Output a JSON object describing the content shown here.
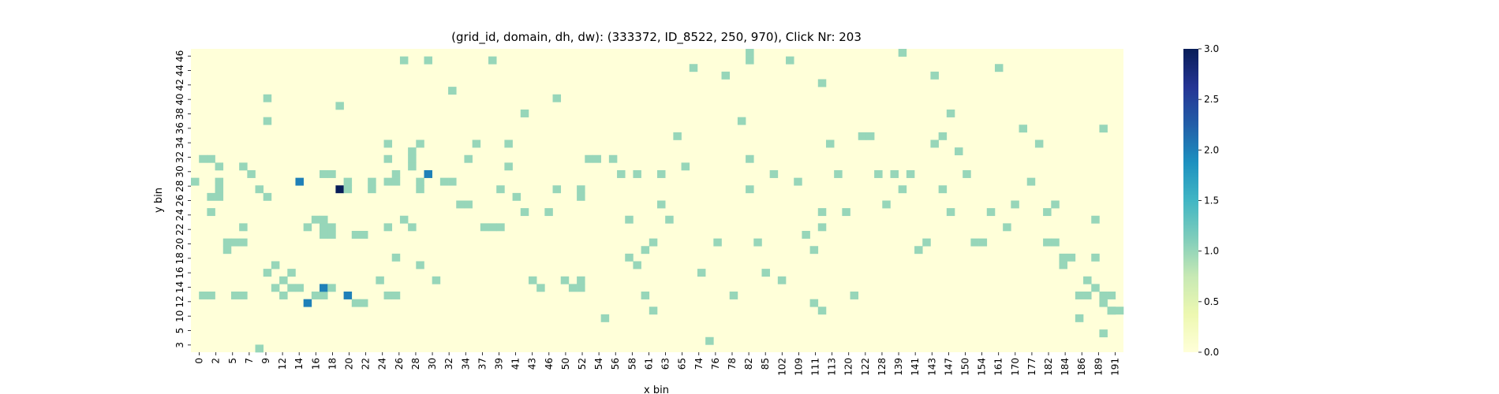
{
  "chart_data": {
    "type": "heatmap",
    "title": "(grid_id, domain, dh, dw): (333372, ID_8522, 250, 970), Click Nr: 203",
    "xlabel": "x bin",
    "ylabel": "y bin",
    "x_tick_labels": [
      "0",
      "2",
      "5",
      "7",
      "9",
      "12",
      "14",
      "16",
      "18",
      "20",
      "22",
      "24",
      "26",
      "28",
      "30",
      "32",
      "34",
      "37",
      "39",
      "41",
      "43",
      "46",
      "50",
      "52",
      "54",
      "56",
      "58",
      "61",
      "63",
      "65",
      "74",
      "76",
      "78",
      "82",
      "85",
      "102",
      "109",
      "111",
      "113",
      "120",
      "122",
      "128",
      "139",
      "141",
      "143",
      "147",
      "150",
      "154",
      "161",
      "170",
      "177",
      "182",
      "184",
      "186",
      "189",
      "191"
    ],
    "y_tick_labels": [
      "46",
      "44",
      "42",
      "40",
      "38",
      "36",
      "34",
      "32",
      "30",
      "28",
      "26",
      "24",
      "22",
      "20",
      "18",
      "16",
      "14",
      "12",
      "10",
      "5",
      "3"
    ],
    "colorbar": {
      "ticks": [
        "0.0",
        "0.5",
        "1.0",
        "1.5",
        "2.0",
        "2.5",
        "3.0"
      ],
      "vmin": 0,
      "vmax": 3,
      "colormap": "YlGnBu",
      "colors": [
        "#ffffd9",
        "#edf8b1",
        "#c7e9b4",
        "#7fcdbb",
        "#41b6c4",
        "#1d91c0",
        "#225ea8",
        "#253494",
        "#081d58"
      ]
    },
    "grid": {
      "n_columns": 116,
      "n_rows": 40,
      "cells": [
        {
          "col": 0,
          "row": 17,
          "value": 1
        },
        {
          "col": 1,
          "row": 14,
          "value": 1
        },
        {
          "col": 1,
          "row": 32,
          "value": 1
        },
        {
          "col": 2,
          "row": 14,
          "value": 1
        },
        {
          "col": 2,
          "row": 21,
          "value": 1
        },
        {
          "col": 2,
          "row": 19,
          "value": 1
        },
        {
          "col": 2,
          "row": 32,
          "value": 1
        },
        {
          "col": 3,
          "row": 17,
          "value": 1
        },
        {
          "col": 3,
          "row": 18,
          "value": 1
        },
        {
          "col": 3,
          "row": 15,
          "value": 1
        },
        {
          "col": 3,
          "row": 19,
          "value": 1
        },
        {
          "col": 4,
          "row": 25,
          "value": 1
        },
        {
          "col": 4,
          "row": 26,
          "value": 1
        },
        {
          "col": 5,
          "row": 25,
          "value": 1
        },
        {
          "col": 6,
          "row": 25,
          "value": 1
        },
        {
          "col": 5,
          "row": 32,
          "value": 1
        },
        {
          "col": 6,
          "row": 32,
          "value": 1
        },
        {
          "col": 6,
          "row": 23,
          "value": 1
        },
        {
          "col": 6,
          "row": 15,
          "value": 1
        },
        {
          "col": 7,
          "row": 16,
          "value": 1
        },
        {
          "col": 8,
          "row": 18,
          "value": 1
        },
        {
          "col": 8,
          "row": 39,
          "value": 1
        },
        {
          "col": 9,
          "row": 29,
          "value": 1
        },
        {
          "col": 9,
          "row": 19,
          "value": 1
        },
        {
          "col": 9,
          "row": 9,
          "value": 1
        },
        {
          "col": 9,
          "row": 6,
          "value": 1
        },
        {
          "col": 10,
          "row": 28,
          "value": 1
        },
        {
          "col": 10,
          "row": 31,
          "value": 1
        },
        {
          "col": 11,
          "row": 32,
          "value": 1
        },
        {
          "col": 11,
          "row": 30,
          "value": 1
        },
        {
          "col": 12,
          "row": 31,
          "value": 1
        },
        {
          "col": 12,
          "row": 29,
          "value": 1
        },
        {
          "col": 13,
          "row": 17,
          "value": 2
        },
        {
          "col": 13,
          "row": 31,
          "value": 1
        },
        {
          "col": 14,
          "row": 33,
          "value": 2
        },
        {
          "col": 14,
          "row": 23,
          "value": 1
        },
        {
          "col": 15,
          "row": 32,
          "value": 1
        },
        {
          "col": 15,
          "row": 22,
          "value": 1
        },
        {
          "col": 16,
          "row": 22,
          "value": 1
        },
        {
          "col": 16,
          "row": 32,
          "value": 1
        },
        {
          "col": 16,
          "row": 31,
          "value": 2
        },
        {
          "col": 16,
          "row": 16,
          "value": 1
        },
        {
          "col": 17,
          "row": 16,
          "value": 1
        },
        {
          "col": 16,
          "row": 23,
          "value": 1
        },
        {
          "col": 16,
          "row": 24,
          "value": 1
        },
        {
          "col": 17,
          "row": 24,
          "value": 1
        },
        {
          "col": 17,
          "row": 23,
          "value": 1
        },
        {
          "col": 17,
          "row": 31,
          "value": 1
        },
        {
          "col": 18,
          "row": 18,
          "value": 3
        },
        {
          "col": 18,
          "row": 7,
          "value": 1
        },
        {
          "col": 19,
          "row": 17,
          "value": 1
        },
        {
          "col": 19,
          "row": 18,
          "value": 1
        },
        {
          "col": 19,
          "row": 32,
          "value": 2
        },
        {
          "col": 20,
          "row": 24,
          "value": 1
        },
        {
          "col": 21,
          "row": 24,
          "value": 1
        },
        {
          "col": 20,
          "row": 33,
          "value": 1
        },
        {
          "col": 21,
          "row": 33,
          "value": 1
        },
        {
          "col": 22,
          "row": 17,
          "value": 1
        },
        {
          "col": 22,
          "row": 18,
          "value": 1
        },
        {
          "col": 23,
          "row": 30,
          "value": 1
        },
        {
          "col": 24,
          "row": 12,
          "value": 1
        },
        {
          "col": 24,
          "row": 14,
          "value": 1
        },
        {
          "col": 24,
          "row": 17,
          "value": 1
        },
        {
          "col": 25,
          "row": 17,
          "value": 1
        },
        {
          "col": 24,
          "row": 23,
          "value": 1
        },
        {
          "col": 24,
          "row": 32,
          "value": 1
        },
        {
          "col": 25,
          "row": 32,
          "value": 1
        },
        {
          "col": 25,
          "row": 16,
          "value": 1
        },
        {
          "col": 25,
          "row": 27,
          "value": 1
        },
        {
          "col": 26,
          "row": 22,
          "value": 1
        },
        {
          "col": 26,
          "row": 1,
          "value": 1
        },
        {
          "col": 27,
          "row": 13,
          "value": 1
        },
        {
          "col": 27,
          "row": 14,
          "value": 1
        },
        {
          "col": 27,
          "row": 15,
          "value": 1
        },
        {
          "col": 27,
          "row": 23,
          "value": 1
        },
        {
          "col": 28,
          "row": 12,
          "value": 1
        },
        {
          "col": 28,
          "row": 17,
          "value": 1
        },
        {
          "col": 28,
          "row": 18,
          "value": 1
        },
        {
          "col": 28,
          "row": 28,
          "value": 1
        },
        {
          "col": 29,
          "row": 16,
          "value": 2
        },
        {
          "col": 29,
          "row": 1,
          "value": 1
        },
        {
          "col": 30,
          "row": 30,
          "value": 1
        },
        {
          "col": 31,
          "row": 17,
          "value": 1
        },
        {
          "col": 32,
          "row": 17,
          "value": 1
        },
        {
          "col": 32,
          "row": 5,
          "value": 1
        },
        {
          "col": 33,
          "row": 20,
          "value": 1
        },
        {
          "col": 34,
          "row": 20,
          "value": 1
        },
        {
          "col": 34,
          "row": 14,
          "value": 1
        },
        {
          "col": 35,
          "row": 12,
          "value": 1
        },
        {
          "col": 36,
          "row": 23,
          "value": 1
        },
        {
          "col": 37,
          "row": 23,
          "value": 1
        },
        {
          "col": 38,
          "row": 23,
          "value": 1
        },
        {
          "col": 37,
          "row": 1,
          "value": 1
        },
        {
          "col": 38,
          "row": 18,
          "value": 1
        },
        {
          "col": 39,
          "row": 12,
          "value": 1
        },
        {
          "col": 39,
          "row": 15,
          "value": 1
        },
        {
          "col": 40,
          "row": 19,
          "value": 1
        },
        {
          "col": 41,
          "row": 8,
          "value": 1
        },
        {
          "col": 41,
          "row": 21,
          "value": 1
        },
        {
          "col": 42,
          "row": 30,
          "value": 1
        },
        {
          "col": 43,
          "row": 31,
          "value": 1
        },
        {
          "col": 44,
          "row": 21,
          "value": 1
        },
        {
          "col": 45,
          "row": 6,
          "value": 1
        },
        {
          "col": 45,
          "row": 18,
          "value": 1
        },
        {
          "col": 46,
          "row": 30,
          "value": 1
        },
        {
          "col": 47,
          "row": 31,
          "value": 1
        },
        {
          "col": 48,
          "row": 18,
          "value": 1
        },
        {
          "col": 48,
          "row": 19,
          "value": 1
        },
        {
          "col": 48,
          "row": 30,
          "value": 1
        },
        {
          "col": 48,
          "row": 31,
          "value": 1
        },
        {
          "col": 49,
          "row": 14,
          "value": 1
        },
        {
          "col": 50,
          "row": 14,
          "value": 1
        },
        {
          "col": 51,
          "row": 35,
          "value": 1
        },
        {
          "col": 52,
          "row": 14,
          "value": 1
        },
        {
          "col": 53,
          "row": 16,
          "value": 1
        },
        {
          "col": 54,
          "row": 22,
          "value": 1
        },
        {
          "col": 54,
          "row": 27,
          "value": 1
        },
        {
          "col": 55,
          "row": 16,
          "value": 1
        },
        {
          "col": 55,
          "row": 28,
          "value": 1
        },
        {
          "col": 56,
          "row": 32,
          "value": 1
        },
        {
          "col": 56,
          "row": 26,
          "value": 1
        },
        {
          "col": 57,
          "row": 34,
          "value": 1
        },
        {
          "col": 57,
          "row": 25,
          "value": 1
        },
        {
          "col": 58,
          "row": 16,
          "value": 1
        },
        {
          "col": 58,
          "row": 20,
          "value": 1
        },
        {
          "col": 59,
          "row": 22,
          "value": 1
        },
        {
          "col": 60,
          "row": 11,
          "value": 1
        },
        {
          "col": 61,
          "row": 15,
          "value": 1
        },
        {
          "col": 62,
          "row": 2,
          "value": 1
        },
        {
          "col": 63,
          "row": 29,
          "value": 1
        },
        {
          "col": 64,
          "row": 38,
          "value": 1
        },
        {
          "col": 65,
          "row": 25,
          "value": 1
        },
        {
          "col": 66,
          "row": 3,
          "value": 1
        },
        {
          "col": 67,
          "row": 32,
          "value": 1
        },
        {
          "col": 68,
          "row": 9,
          "value": 1
        },
        {
          "col": 69,
          "row": 1,
          "value": 1
        },
        {
          "col": 69,
          "row": 14,
          "value": 1
        },
        {
          "col": 69,
          "row": 18,
          "value": 1
        },
        {
          "col": 69,
          "row": 0,
          "value": 1
        },
        {
          "col": 70,
          "row": 25,
          "value": 1
        },
        {
          "col": 71,
          "row": 29,
          "value": 1
        },
        {
          "col": 72,
          "row": 16,
          "value": 1
        },
        {
          "col": 73,
          "row": 30,
          "value": 1
        },
        {
          "col": 74,
          "row": 1,
          "value": 1
        },
        {
          "col": 75,
          "row": 17,
          "value": 1
        },
        {
          "col": 76,
          "row": 24,
          "value": 1
        },
        {
          "col": 77,
          "row": 26,
          "value": 1
        },
        {
          "col": 77,
          "row": 33,
          "value": 1
        },
        {
          "col": 78,
          "row": 4,
          "value": 1
        },
        {
          "col": 78,
          "row": 21,
          "value": 1
        },
        {
          "col": 78,
          "row": 23,
          "value": 1
        },
        {
          "col": 78,
          "row": 34,
          "value": 1
        },
        {
          "col": 79,
          "row": 12,
          "value": 1
        },
        {
          "col": 80,
          "row": 16,
          "value": 1
        },
        {
          "col": 81,
          "row": 21,
          "value": 1
        },
        {
          "col": 82,
          "row": 32,
          "value": 1
        },
        {
          "col": 83,
          "row": 11,
          "value": 1
        },
        {
          "col": 84,
          "row": 11,
          "value": 1
        },
        {
          "col": 85,
          "row": 16,
          "value": 1
        },
        {
          "col": 86,
          "row": 20,
          "value": 1
        },
        {
          "col": 87,
          "row": 16,
          "value": 1
        },
        {
          "col": 88,
          "row": 18,
          "value": 1
        },
        {
          "col": 88,
          "row": 0,
          "value": 1
        },
        {
          "col": 89,
          "row": 16,
          "value": 1
        },
        {
          "col": 90,
          "row": 26,
          "value": 1
        },
        {
          "col": 91,
          "row": 25,
          "value": 1
        },
        {
          "col": 92,
          "row": 3,
          "value": 1
        },
        {
          "col": 92,
          "row": 12,
          "value": 1
        },
        {
          "col": 93,
          "row": 11,
          "value": 1
        },
        {
          "col": 93,
          "row": 18,
          "value": 1
        },
        {
          "col": 94,
          "row": 8,
          "value": 1
        },
        {
          "col": 94,
          "row": 21,
          "value": 1
        },
        {
          "col": 95,
          "row": 13,
          "value": 1
        },
        {
          "col": 96,
          "row": 16,
          "value": 1
        },
        {
          "col": 97,
          "row": 25,
          "value": 1
        },
        {
          "col": 98,
          "row": 25,
          "value": 1
        },
        {
          "col": 99,
          "row": 21,
          "value": 1
        },
        {
          "col": 100,
          "row": 2,
          "value": 1
        },
        {
          "col": 101,
          "row": 23,
          "value": 1
        },
        {
          "col": 102,
          "row": 20,
          "value": 1
        },
        {
          "col": 103,
          "row": 10,
          "value": 1
        },
        {
          "col": 104,
          "row": 17,
          "value": 1
        },
        {
          "col": 105,
          "row": 12,
          "value": 1
        },
        {
          "col": 106,
          "row": 21,
          "value": 1
        },
        {
          "col": 106,
          "row": 25,
          "value": 1
        },
        {
          "col": 107,
          "row": 25,
          "value": 1
        },
        {
          "col": 107,
          "row": 20,
          "value": 1
        },
        {
          "col": 108,
          "row": 28,
          "value": 1
        },
        {
          "col": 108,
          "row": 27,
          "value": 1
        },
        {
          "col": 109,
          "row": 27,
          "value": 1
        },
        {
          "col": 110,
          "row": 35,
          "value": 1
        },
        {
          "col": 110,
          "row": 32,
          "value": 1
        },
        {
          "col": 111,
          "row": 32,
          "value": 1
        },
        {
          "col": 112,
          "row": 27,
          "value": 1
        },
        {
          "col": 113,
          "row": 32,
          "value": 1
        },
        {
          "col": 113,
          "row": 33,
          "value": 1
        },
        {
          "col": 114,
          "row": 32,
          "value": 1
        },
        {
          "col": 115,
          "row": 34,
          "value": 1
        },
        {
          "col": 112,
          "row": 31,
          "value": 1
        },
        {
          "col": 111,
          "row": 30,
          "value": 1
        },
        {
          "col": 113,
          "row": 37,
          "value": 1
        },
        {
          "col": 114,
          "row": 34,
          "value": 1
        },
        {
          "col": 112,
          "row": 22,
          "value": 1
        },
        {
          "col": 113,
          "row": 10,
          "value": 1
        },
        {
          "col": 114,
          "row": 34,
          "value": 1
        }
      ]
    }
  }
}
